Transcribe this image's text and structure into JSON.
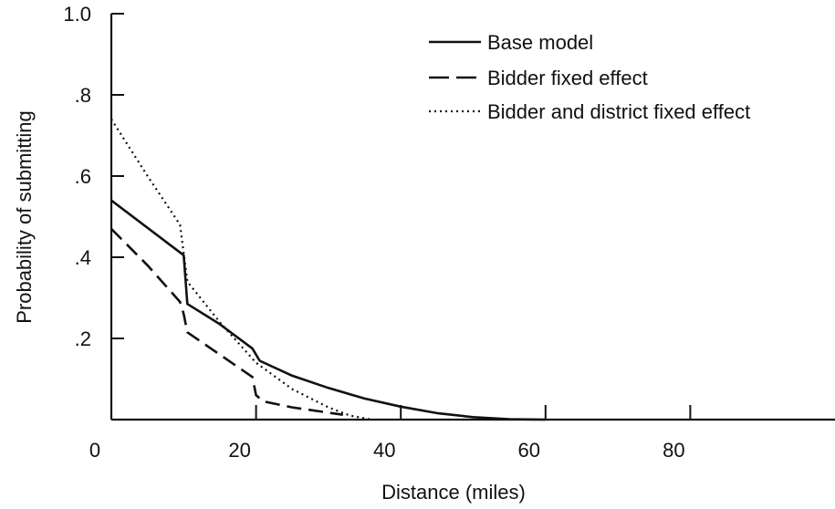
{
  "chart_data": {
    "type": "line",
    "xlabel": "Distance (miles)",
    "ylabel": "Probability of submitting",
    "xlim": [
      0,
      100
    ],
    "ylim": [
      0,
      1.0
    ],
    "x_ticks": [
      {
        "value": 0,
        "label": "0"
      },
      {
        "value": 20,
        "label": "20"
      },
      {
        "value": 40,
        "label": "40"
      },
      {
        "value": 60,
        "label": "60"
      },
      {
        "value": 80,
        "label": "80"
      }
    ],
    "y_ticks": [
      {
        "value": 0.2,
        "label": ".2"
      },
      {
        "value": 0.4,
        "label": ".4"
      },
      {
        "value": 0.6,
        "label": ".6"
      },
      {
        "value": 0.8,
        "label": ".8"
      },
      {
        "value": 1.0,
        "label": "1.0"
      }
    ],
    "grid": false,
    "legend_position": "top-right",
    "series": [
      {
        "name": "Base model",
        "style": "solid",
        "x": [
          0,
          10,
          10.5,
          15,
          19.5,
          20,
          20.5,
          25,
          30,
          35,
          40,
          45,
          50,
          55,
          60
        ],
        "y": [
          0.54,
          0.405,
          0.285,
          0.235,
          0.175,
          0.16,
          0.145,
          0.108,
          0.078,
          0.052,
          0.032,
          0.016,
          0.006,
          0.001,
          0.0
        ]
      },
      {
        "name": "Bidder fixed effect",
        "style": "dashed",
        "x": [
          0,
          5,
          9.5,
          10,
          10.5,
          15,
          19.5,
          20,
          21,
          25,
          30,
          32
        ],
        "y": [
          0.47,
          0.38,
          0.29,
          0.26,
          0.215,
          0.16,
          0.105,
          0.06,
          0.045,
          0.03,
          0.017,
          0.012
        ]
      },
      {
        "name": "Bidder and district fixed effect",
        "style": "dotted",
        "x": [
          0,
          5,
          9.5,
          10.5,
          15,
          20,
          25,
          30,
          33,
          36
        ],
        "y": [
          0.74,
          0.6,
          0.48,
          0.34,
          0.24,
          0.14,
          0.075,
          0.03,
          0.01,
          0.0
        ]
      }
    ]
  }
}
